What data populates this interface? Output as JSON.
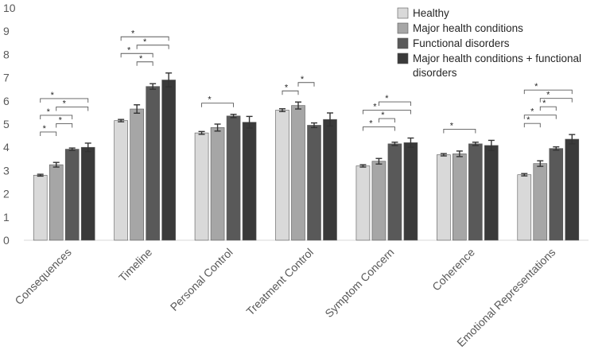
{
  "chart_data": {
    "type": "bar",
    "ylim": [
      0,
      10
    ],
    "yticks": [
      0,
      1,
      2,
      3,
      4,
      5,
      6,
      7,
      8,
      9,
      10
    ],
    "categories": [
      "Consequences",
      "Timeline",
      "Personal Control",
      "Treatment Control",
      "Symptom Concern",
      "Coherence",
      "Emotional Representations"
    ],
    "series": [
      {
        "name": "Healthy",
        "color": "#d9d9d9",
        "values": [
          2.8,
          5.15,
          4.62,
          5.6,
          3.2,
          3.68,
          2.82
        ],
        "errors": [
          0.04,
          0.05,
          0.06,
          0.06,
          0.05,
          0.05,
          0.05
        ]
      },
      {
        "name": "Major health conditions",
        "color": "#a6a6a6",
        "values": [
          3.25,
          5.65,
          4.85,
          5.8,
          3.4,
          3.72,
          3.3
        ],
        "errors": [
          0.1,
          0.18,
          0.15,
          0.15,
          0.12,
          0.12,
          0.12
        ]
      },
      {
        "name": "Functional disorders",
        "color": "#595959",
        "values": [
          3.92,
          6.62,
          5.35,
          4.95,
          4.15,
          4.15,
          3.95
        ],
        "errors": [
          0.05,
          0.12,
          0.07,
          0.1,
          0.07,
          0.07,
          0.07
        ]
      },
      {
        "name": "Major health conditions + functional disorders",
        "color": "#3a3a3a",
        "values": [
          4.0,
          6.9,
          5.08,
          5.2,
          4.2,
          4.08,
          4.35
        ],
        "errors": [
          0.18,
          0.3,
          0.25,
          0.28,
          0.2,
          0.22,
          0.2
        ]
      }
    ],
    "legend": [
      {
        "label": "Healthy",
        "color": "#d9d9d9"
      },
      {
        "label": "Major health conditions",
        "color": "#a6a6a6"
      },
      {
        "label": "Functional disorders",
        "color": "#595959"
      },
      {
        "label": "Major health conditions + functional disorders",
        "color": "#3a3a3a"
      }
    ],
    "legend_position": "top-right",
    "significance_marker": "*",
    "significance": [
      {
        "category": 0,
        "pairs": [
          [
            0,
            1
          ],
          [
            1,
            2
          ],
          [
            0,
            2
          ],
          [
            1,
            3
          ],
          [
            0,
            3
          ]
        ]
      },
      {
        "category": 1,
        "pairs": [
          [
            1,
            2
          ],
          [
            0,
            2
          ],
          [
            1,
            3
          ],
          [
            0,
            3
          ]
        ]
      },
      {
        "category": 2,
        "pairs": [
          [
            0,
            2
          ]
        ]
      },
      {
        "category": 3,
        "pairs": [
          [
            0,
            1
          ],
          [
            1,
            2
          ]
        ]
      },
      {
        "category": 4,
        "pairs": [
          [
            0,
            2
          ],
          [
            1,
            2
          ],
          [
            0,
            3
          ],
          [
            1,
            3
          ]
        ]
      },
      {
        "category": 5,
        "pairs": [
          [
            0,
            2
          ]
        ]
      },
      {
        "category": 6,
        "pairs": [
          [
            0,
            1
          ],
          [
            0,
            2
          ],
          [
            1,
            2
          ],
          [
            1,
            3
          ],
          [
            0,
            3
          ]
        ]
      }
    ]
  }
}
